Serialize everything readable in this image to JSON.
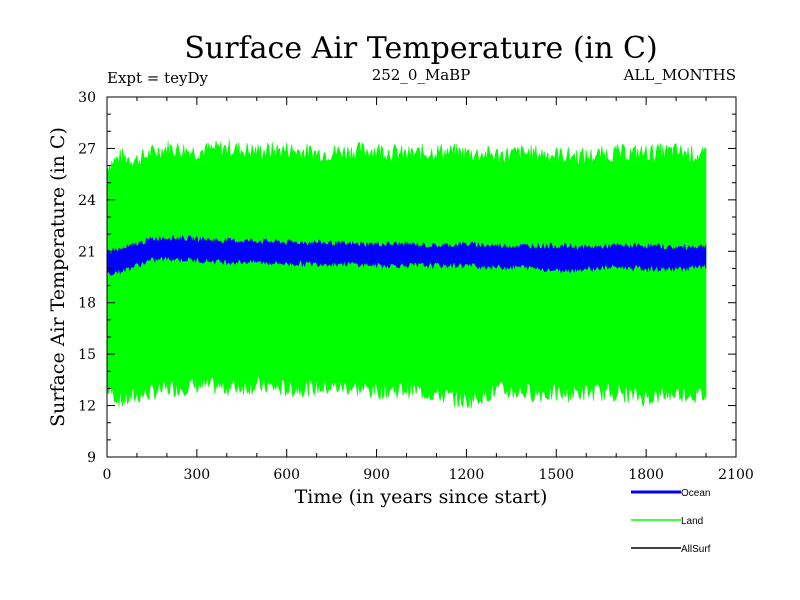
{
  "colors": {
    "ocean": "#0000ff",
    "land": "#00ff00",
    "allsurf": "#000000"
  },
  "chart_data": {
    "type": "area",
    "title": "Surface Air Temperature (in C)",
    "subtitle_left": "Expt = teyDy",
    "subtitle_center": "252_0_MaBP",
    "subtitle_right": "ALL_MONTHS",
    "xlabel": "Time (in years since start)",
    "ylabel": "Surface Air Temperature (in C)",
    "xlim": [
      0,
      2100
    ],
    "ylim": [
      9,
      30
    ],
    "x_ticks": [
      0,
      300,
      600,
      900,
      1200,
      1500,
      1800,
      2100
    ],
    "y_ticks": [
      9,
      12,
      15,
      18,
      21,
      24,
      27,
      30
    ],
    "legend_position": "bottom-right",
    "series": [
      {
        "name": "Ocean",
        "kind": "band",
        "x": [
          0,
          50,
          100,
          150,
          200,
          300,
          400,
          500,
          600,
          700,
          800,
          900,
          1000,
          1100,
          1200,
          1300,
          1400,
          1500,
          1600,
          1700,
          1800,
          1900,
          2000
        ],
        "upper": [
          21.0,
          21.1,
          21.4,
          21.7,
          21.8,
          21.7,
          21.6,
          21.6,
          21.5,
          21.5,
          21.4,
          21.4,
          21.4,
          21.3,
          21.4,
          21.3,
          21.3,
          21.3,
          21.2,
          21.3,
          21.3,
          21.2,
          21.3
        ],
        "lower": [
          19.7,
          19.9,
          20.2,
          20.5,
          20.6,
          20.5,
          20.4,
          20.4,
          20.3,
          20.3,
          20.3,
          20.2,
          20.2,
          20.2,
          20.2,
          20.1,
          20.1,
          19.9,
          20.0,
          20.1,
          20.0,
          20.0,
          20.1
        ]
      },
      {
        "name": "Land",
        "kind": "band",
        "x": [
          0,
          50,
          100,
          150,
          200,
          300,
          400,
          500,
          600,
          700,
          800,
          900,
          1000,
          1100,
          1200,
          1300,
          1400,
          1500,
          1600,
          1700,
          1800,
          1900,
          2000
        ],
        "upper": [
          26.0,
          26.5,
          26.3,
          26.7,
          27.0,
          26.8,
          27.0,
          26.8,
          26.9,
          26.7,
          26.8,
          26.9,
          26.6,
          26.8,
          26.7,
          26.6,
          26.7,
          26.6,
          26.5,
          26.7,
          26.7,
          26.8,
          26.5
        ],
        "lower": [
          13.0,
          12.3,
          12.6,
          12.8,
          13.0,
          13.2,
          13.1,
          13.2,
          13.0,
          13.1,
          13.1,
          12.9,
          13.0,
          12.7,
          12.3,
          12.9,
          12.8,
          12.7,
          12.8,
          12.8,
          12.5,
          12.8,
          12.6
        ]
      },
      {
        "name": "AllSurf",
        "kind": "line",
        "x": [],
        "values": []
      }
    ]
  }
}
